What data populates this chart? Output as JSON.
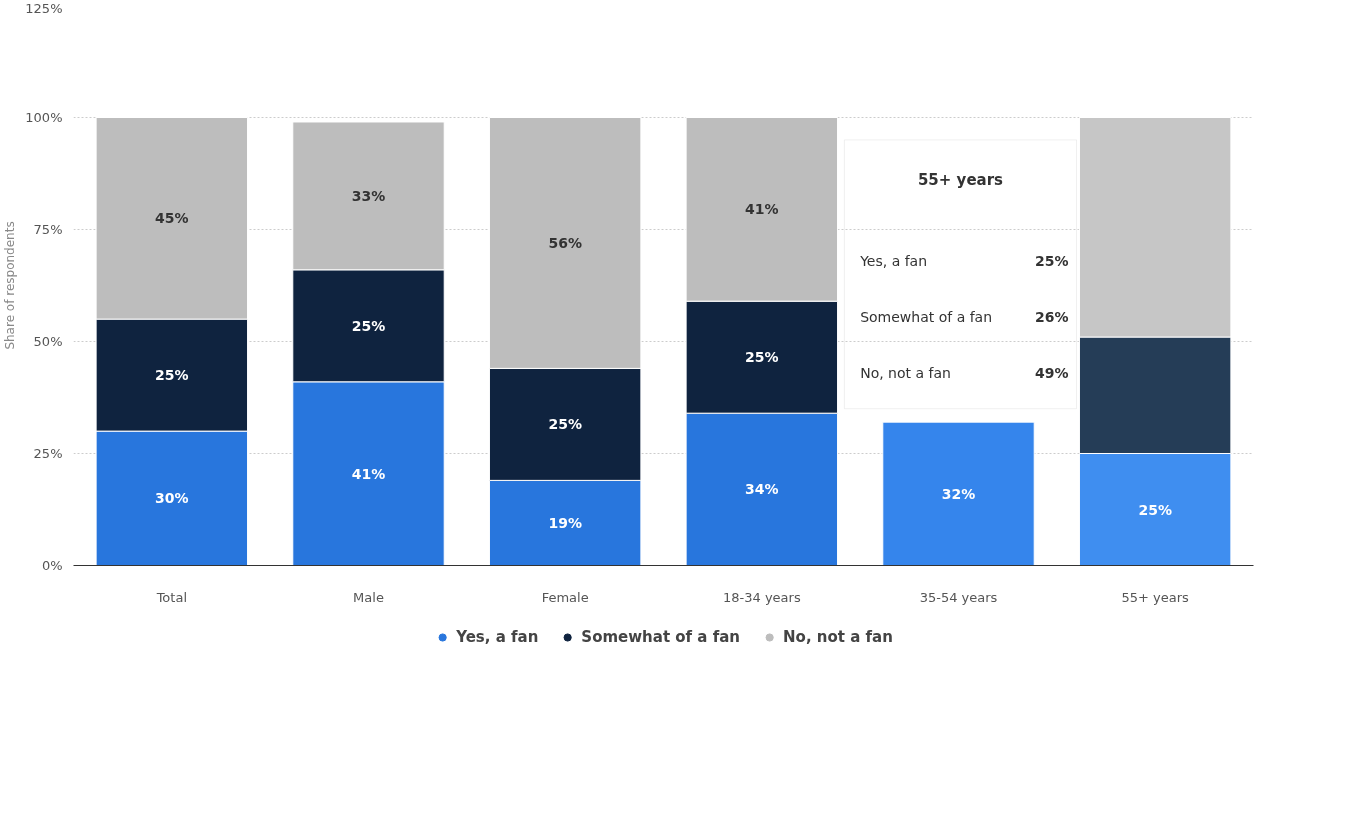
{
  "chart_data": {
    "type": "bar",
    "stacked": true,
    "ylabel": "Share of respondents",
    "categories": [
      "Total",
      "Male",
      "Female",
      "18-34 years",
      "35-54 years",
      "55+ years"
    ],
    "series": [
      {
        "name": "Yes, a fan",
        "color": "#2876dd",
        "colors": [
          "#2876dd",
          "#2876dd",
          "#2876dd",
          "#2876dd",
          "#3585ec",
          "#3f8ef0"
        ],
        "values": [
          30,
          41,
          19,
          34,
          32,
          25
        ],
        "value_labels": [
          "30%",
          "41%",
          "19%",
          "34%",
          "32%",
          "25%"
        ]
      },
      {
        "name": "Somewhat of a fan",
        "color": "#0f233f",
        "colors": [
          "#0f233f",
          "#0f233f",
          "#0f233f",
          "#0f233f",
          "#0f233f",
          "#253d57"
        ],
        "values": [
          25,
          25,
          25,
          25,
          null,
          26
        ],
        "value_labels": [
          "25%",
          "25%",
          "25%",
          "25%",
          null,
          null
        ]
      },
      {
        "name": "No, not a fan",
        "color": "#bdbdbd",
        "colors": [
          "#bdbdbd",
          "#bdbdbd",
          "#bdbdbd",
          "#bdbdbd",
          "#c6c6c6",
          "#c6c6c6"
        ],
        "values": [
          45,
          33,
          56,
          41,
          null,
          49
        ],
        "value_labels": [
          "45%",
          "33%",
          "56%",
          "41%",
          null,
          null
        ]
      }
    ],
    "ylim": [
      0,
      125
    ],
    "yticks": [
      {
        "value": 0,
        "label": "0%"
      },
      {
        "value": 25,
        "label": "25%"
      },
      {
        "value": 50,
        "label": "50%"
      },
      {
        "value": 75,
        "label": "75%"
      },
      {
        "value": 100,
        "label": "100%"
      },
      {
        "value": 125,
        "label": "125%"
      }
    ],
    "grid": "y",
    "legend": "bottom",
    "annotations": [
      "55+ years",
      "Yes, a fan",
      "25%",
      "Somewhat of a fan",
      "26%",
      "No, not a fan",
      "49%"
    ]
  }
}
